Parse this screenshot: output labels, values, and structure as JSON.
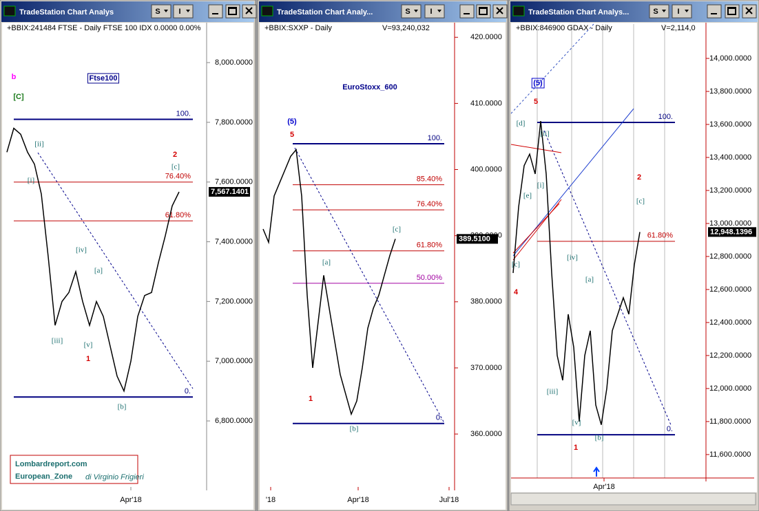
{
  "chart_data": [
    {
      "type": "line",
      "window_title": "TradeStation Chart Analys",
      "buttons": [
        "S",
        "I"
      ],
      "header": "+BBIX:241484 FTSE - Daily   FTSE 100 IDX  0.0000  0.00%",
      "values": [
        7700,
        7780,
        7760,
        7700,
        7660,
        7560,
        7350,
        7120,
        7200,
        7230,
        7300,
        7200,
        7120,
        7200,
        7150,
        7050,
        6950,
        6900,
        7000,
        7150,
        7220,
        7230,
        7330,
        7420,
        7520,
        7567.1401
      ],
      "color": "#000000",
      "xlim": [
        -0.5,
        29
      ],
      "xticks": [
        {
          "value": 18,
          "label": "Apr'18"
        }
      ],
      "ylim": [
        6579,
        8129
      ],
      "yticks": [
        {
          "value": 8000,
          "label": "8,000.0000"
        },
        {
          "value": 7800,
          "label": "7,800.0000"
        },
        {
          "value": 7600,
          "label": "7,600.0000"
        },
        {
          "value": 7400,
          "label": "7,400.0000"
        },
        {
          "value": 7200,
          "label": "7,200.0000"
        },
        {
          "value": 7000,
          "label": "7,000.0000"
        },
        {
          "value": 6800,
          "label": "6,800.0000"
        }
      ],
      "last": {
        "value": 7567.1401,
        "label": "7,567.1401"
      },
      "levels": [
        {
          "label": "100.",
          "value": 7810,
          "color": "#000080"
        },
        {
          "label": "76.40%",
          "value": 7600,
          "color": "#c00000"
        },
        {
          "label": "61.80%",
          "value": 7470,
          "color": "#c00000"
        },
        {
          "label": "0.",
          "value": 6880,
          "color": "#000080"
        }
      ],
      "annotations": [
        "b",
        "[C]",
        "Ftse100",
        "[ii]",
        "[i]",
        "[iii]",
        "[iv]",
        "[v]",
        "[a]",
        "1",
        "[b]",
        "[c]",
        "2"
      ]
    },
    {
      "type": "line",
      "window_title": "TradeStation Chart Analy...",
      "buttons": [
        "S",
        "I"
      ],
      "header": "+BBIX:SXXP - Daily",
      "volume": "V=93,240,032",
      "values": [
        391,
        389,
        396,
        398,
        400,
        402,
        403,
        396,
        381,
        370,
        377,
        384,
        379,
        374,
        369,
        366,
        363,
        365,
        370,
        376,
        379,
        381,
        384,
        387,
        389.51
      ],
      "color": "#000000",
      "xlim": [
        -0.5,
        34.75
      ],
      "xticks": [
        {
          "value": 1.375,
          "label": "'18"
        },
        {
          "value": 17.25,
          "label": "Apr'18"
        },
        {
          "value": 33.75,
          "label": "Jul'18"
        }
      ],
      "ylim": [
        352,
        422
      ],
      "yticks": [
        {
          "value": 420,
          "label": "420.0000"
        },
        {
          "value": 410,
          "label": "410.0000"
        },
        {
          "value": 400,
          "label": "400.0000"
        },
        {
          "value": 390,
          "label": "390.0000"
        },
        {
          "value": 380,
          "label": "380.0000"
        },
        {
          "value": 370,
          "label": "370.0000"
        },
        {
          "value": 360,
          "label": "360.0000"
        }
      ],
      "last": {
        "value": 389.51,
        "label": "389.5100"
      },
      "levels": [
        {
          "label": "100.",
          "value": 403.9,
          "color": "#000080"
        },
        {
          "label": "85.40%",
          "value": 397.7,
          "color": "#c00000"
        },
        {
          "label": "76.40%",
          "value": 393.9,
          "color": "#c00000"
        },
        {
          "label": "61.80%",
          "value": 387.7,
          "color": "#c00000"
        },
        {
          "label": "50.00%",
          "value": 382.8,
          "color": "#a000a0"
        },
        {
          "label": "0.",
          "value": 361.6,
          "color": "#000080"
        }
      ],
      "annotations": [
        "EuroStoxx_600",
        "(5)",
        "5",
        "1",
        "[a]",
        "[b]",
        "[c]"
      ]
    },
    {
      "type": "line",
      "window_title": "TradeStation Chart Analys...",
      "buttons": [
        "S",
        "I"
      ],
      "header": "+BBIX:846900 GDAX - Daily",
      "volume": "V=2,114,0",
      "values": [
        12700,
        13100,
        13350,
        13420,
        13300,
        13620,
        13300,
        12700,
        12200,
        12050,
        12450,
        12250,
        11800,
        12200,
        12350,
        11900,
        11780,
        12000,
        12350,
        12450,
        12550,
        12450,
        12750,
        12948.1396
      ],
      "color": "#000000",
      "xlim": [
        -0.375,
        35
      ],
      "xticks": [
        {
          "value": 16.5,
          "label": "Apr'18"
        }
      ],
      "ylim": [
        11458,
        14208
      ],
      "yticks": [
        {
          "value": 14000,
          "label": "14,000.0000"
        },
        {
          "value": 13800,
          "label": "13,800.0000"
        },
        {
          "value": 13600,
          "label": "13,600.0000"
        },
        {
          "value": 13400,
          "label": "13,400.0000"
        },
        {
          "value": 13200,
          "label": "13,200.0000"
        },
        {
          "value": 13000,
          "label": "13,000.0000"
        },
        {
          "value": 12800,
          "label": "12,800.0000"
        },
        {
          "value": 12600,
          "label": "12,600.0000"
        },
        {
          "value": 12400,
          "label": "12,400.0000"
        },
        {
          "value": 12200,
          "label": "12,200.0000"
        },
        {
          "value": 12000,
          "label": "12,000.0000"
        },
        {
          "value": 11800,
          "label": "11,800.0000"
        },
        {
          "value": 11600,
          "label": "11,600.0000"
        }
      ],
      "last": {
        "value": 12948.1396,
        "label": "12,948.1396"
      },
      "levels": [
        {
          "label": "100.",
          "value": 13612,
          "color": "#000080"
        },
        {
          "label": "61.80%",
          "value": 12892,
          "color": "#c00000"
        },
        {
          "label": "0.",
          "value": 11720,
          "color": "#000080"
        }
      ],
      "annotations": [
        "(5)",
        "5",
        "[d]",
        "[ii]",
        "[i]",
        "[e]",
        "[c]",
        "4",
        "[iv]",
        "[a]",
        "[iii]",
        "[v]",
        "[b]",
        "1",
        "2",
        "[c]"
      ]
    }
  ],
  "watermark": {
    "site": "Lombardreport.com",
    "zone": "European_Zone",
    "author": "di Virginio Frigieri"
  }
}
